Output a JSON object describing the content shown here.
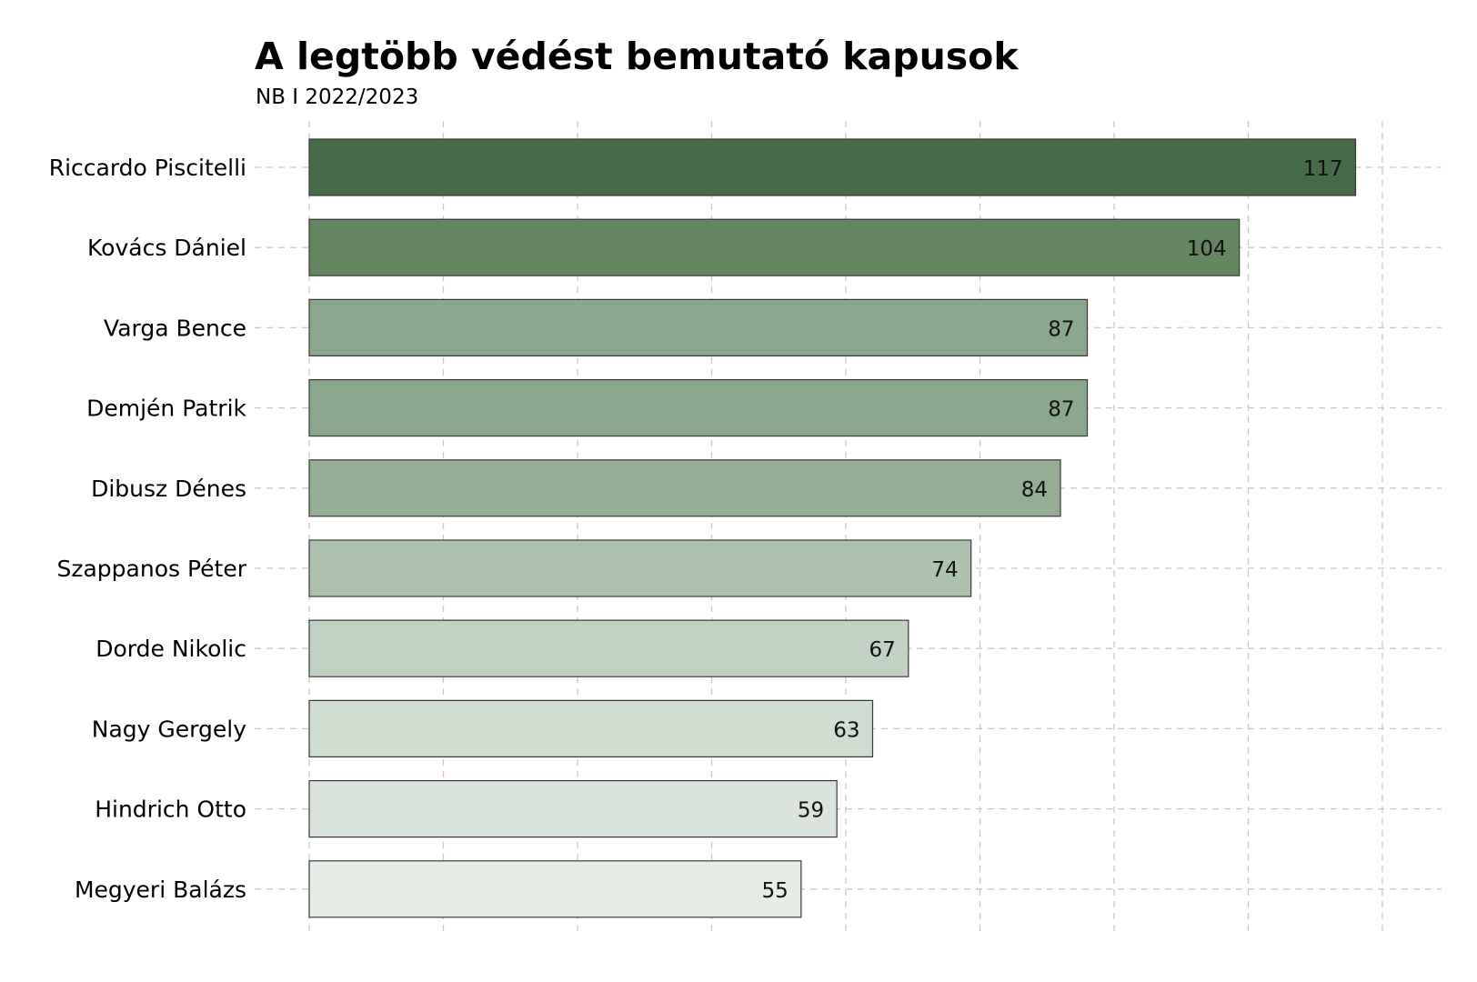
{
  "chart_data": {
    "type": "bar",
    "orientation": "horizontal",
    "title": "A legtöbb védést bemutató kapusok",
    "subtitle": "NB I 2022/2023",
    "categories": [
      "Riccardo Piscitelli",
      "Kovács Dániel",
      "Varga Bence",
      "Demjén Patrik",
      "Dibusz Dénes",
      "Szappanos Péter",
      "Dorde Nikolic",
      "Nagy Gergely",
      "Hindrich Otto",
      "Megyeri Balázs"
    ],
    "values": [
      117,
      104,
      87,
      87,
      84,
      74,
      67,
      63,
      59,
      55
    ],
    "xlim": [
      0,
      120
    ],
    "grid": true,
    "value_labels": true,
    "colors": [
      "#456b49",
      "#63855f",
      "#8ba78b",
      "#8ba78b",
      "#94ad93",
      "#adc2ae",
      "#c1d1c3",
      "#d0ddd1",
      "#dbe4dc",
      "#e6ece6"
    ],
    "bar_outline": "#3a3a3a"
  }
}
